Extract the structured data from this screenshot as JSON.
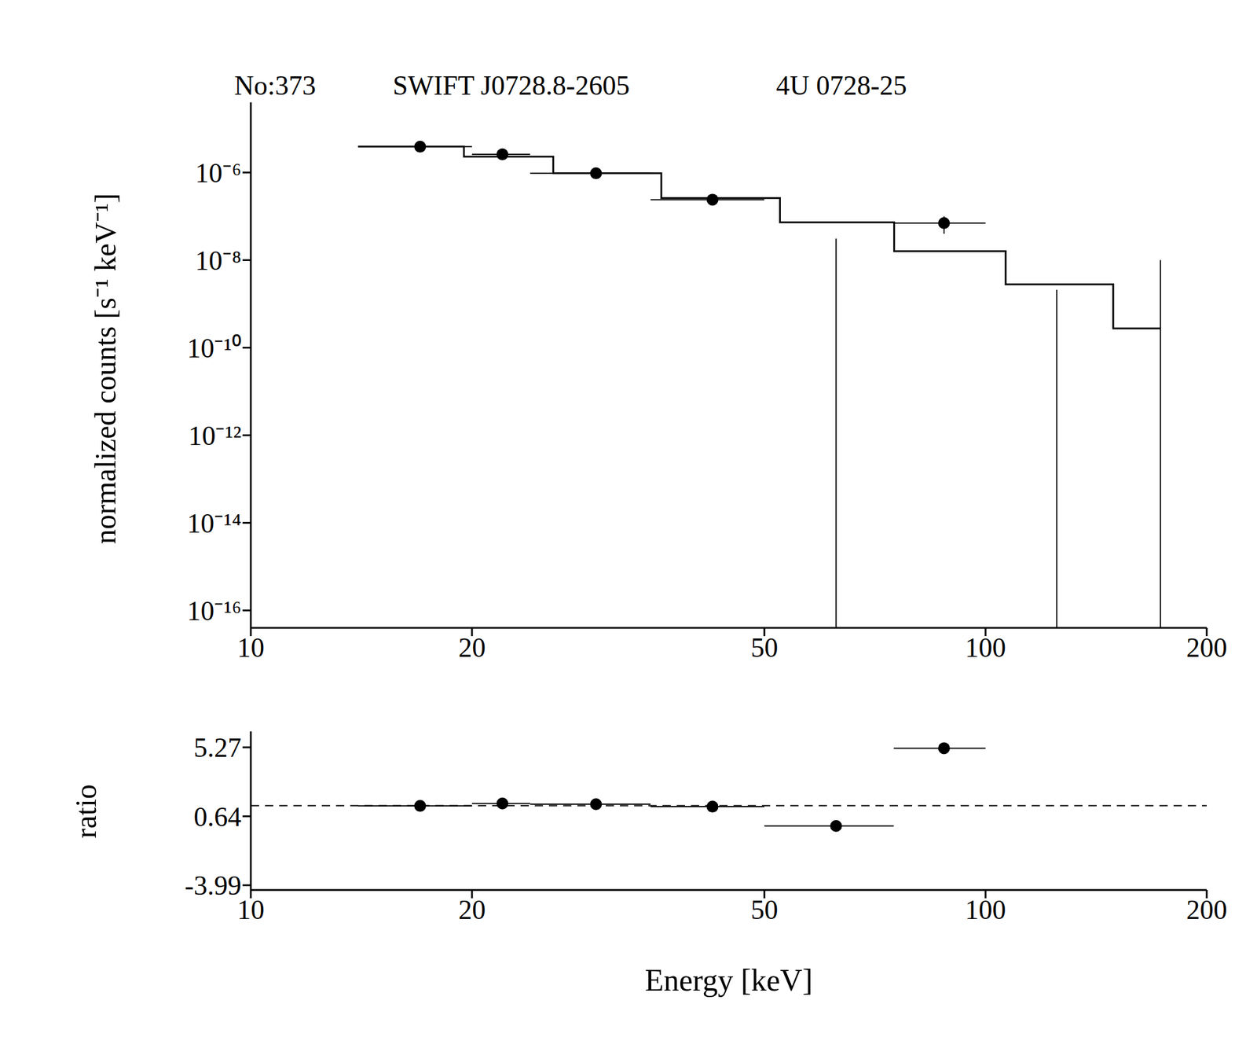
{
  "chart_data": [
    {
      "type": "scatter",
      "title": [
        "No:373",
        "SWIFT J0728.8-2605",
        "4U 0728-25"
      ],
      "ylabel": "normalized counts [s⁻¹ keV⁻¹]",
      "log": true,
      "xlim": [
        10,
        200
      ],
      "xticks": [
        10,
        20,
        50,
        100,
        200
      ],
      "ylim": [
        4e-17,
        4e-05
      ],
      "yticks": [
        {
          "value": 1e-16,
          "label": "10⁻¹⁶"
        },
        {
          "value": 1e-14,
          "label": "10⁻¹⁴"
        },
        {
          "value": 1e-12,
          "label": "10⁻¹²"
        },
        {
          "value": 1e-10,
          "label": "10⁻¹⁰"
        },
        {
          "value": 1e-08,
          "label": "10⁻⁸"
        },
        {
          "value": 1e-06,
          "label": "10⁻⁶"
        }
      ],
      "series": [
        {
          "type": "scatter",
          "marker": "circle",
          "color": "#000000",
          "x": [
            17,
            22,
            29.5,
            42.5,
            62.6,
            87.8,
            125,
            173
          ],
          "x_low": [
            14,
            20,
            24,
            35,
            null,
            75,
            null,
            null
          ],
          "x_high": [
            20,
            24,
            35,
            50,
            null,
            100,
            null,
            null
          ],
          "values": [
            3.9e-06,
            2.6e-06,
            9.6e-07,
            2.4e-07,
            null,
            7e-08,
            null,
            null
          ],
          "y_low": [
            null,
            null,
            null,
            null,
            null,
            4e-08,
            null,
            null
          ],
          "y_high": [
            null,
            null,
            null,
            null,
            3.1e-08,
            1e-07,
            2.1e-09,
            1e-08
          ]
        },
        {
          "type": "line",
          "line_style": "step",
          "color": "#000000",
          "x_low": [
            14,
            19.5,
            25.8,
            36.2,
            52.5,
            75.1,
            106.5,
            149.2
          ],
          "x_high": [
            19.5,
            25.8,
            36.2,
            52.5,
            75.1,
            106.5,
            149.2,
            173
          ],
          "values": [
            3.9e-06,
            2.3e-06,
            9.6e-07,
            2.6e-07,
            7.3e-08,
            1.6e-08,
            2.8e-09,
            2.75e-10
          ]
        }
      ]
    },
    {
      "type": "scatter",
      "xlabel": "Energy [keV]",
      "ylabel": "ratio",
      "log": "x",
      "xlim": [
        10,
        200
      ],
      "xticks": [
        10,
        20,
        50,
        100,
        200
      ],
      "ylim": [
        -4.31,
        6.34
      ],
      "yticks": [
        -3.99,
        0.64,
        5.27
      ],
      "reference": {
        "value": 1.35,
        "line_style": "dashed"
      },
      "series": [
        {
          "type": "scatter",
          "marker": "circle",
          "color": "#000000",
          "x": [
            17,
            22,
            29.5,
            42.5,
            62.6,
            87.8
          ],
          "x_low": [
            14,
            20,
            24,
            35,
            50,
            75
          ],
          "x_high": [
            20,
            24,
            35,
            50,
            75,
            100
          ],
          "values": [
            1.34,
            1.5,
            1.45,
            1.29,
            -0.01,
            5.21
          ]
        }
      ]
    }
  ]
}
